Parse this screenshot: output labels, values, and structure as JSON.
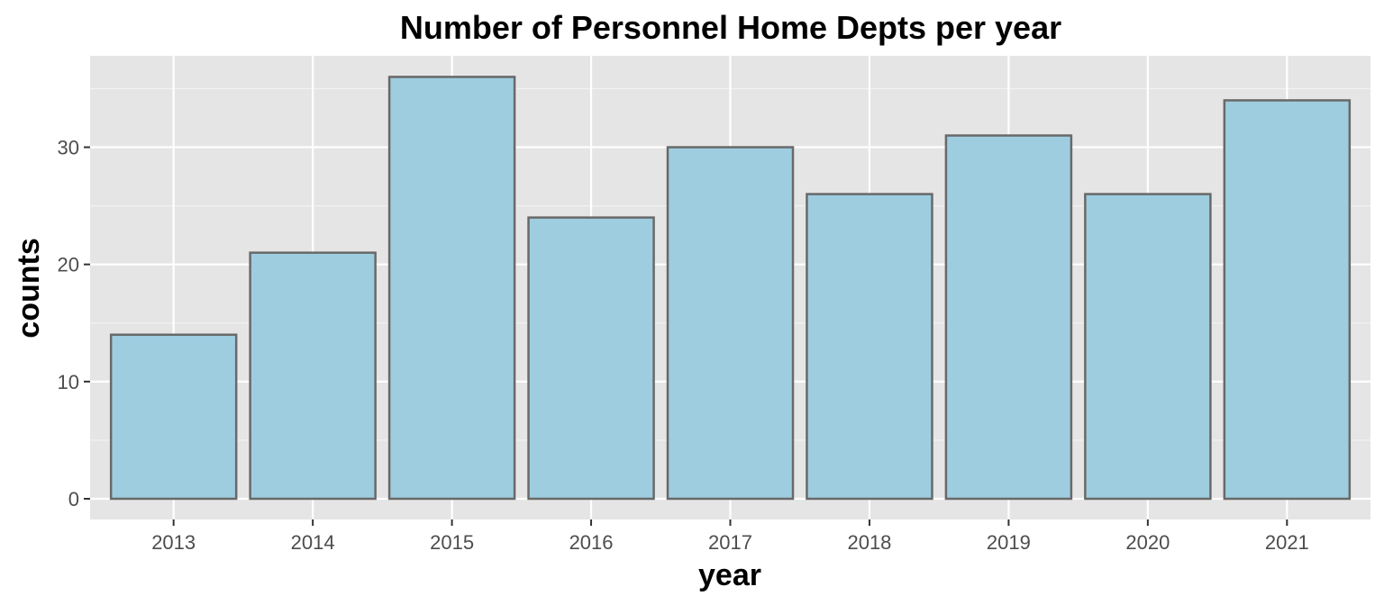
{
  "chart_data": {
    "type": "bar",
    "title": "Number of Personnel Home Depts per year",
    "xlabel": "year",
    "ylabel": "counts",
    "categories": [
      "2013",
      "2014",
      "2015",
      "2016",
      "2017",
      "2018",
      "2019",
      "2020",
      "2021"
    ],
    "values": [
      14,
      21,
      36,
      24,
      30,
      26,
      31,
      26,
      34
    ],
    "ylim": [
      0,
      37.8
    ],
    "yticks": [
      0,
      10,
      20,
      30
    ],
    "grid": true,
    "legend": "none",
    "colors": {
      "bar_fill": "#9ecde0",
      "bar_stroke": "#696969",
      "panel_background": "#e5e5e5",
      "grid_major": "#ffffff",
      "grid_minor": "#f2f2f2"
    }
  }
}
